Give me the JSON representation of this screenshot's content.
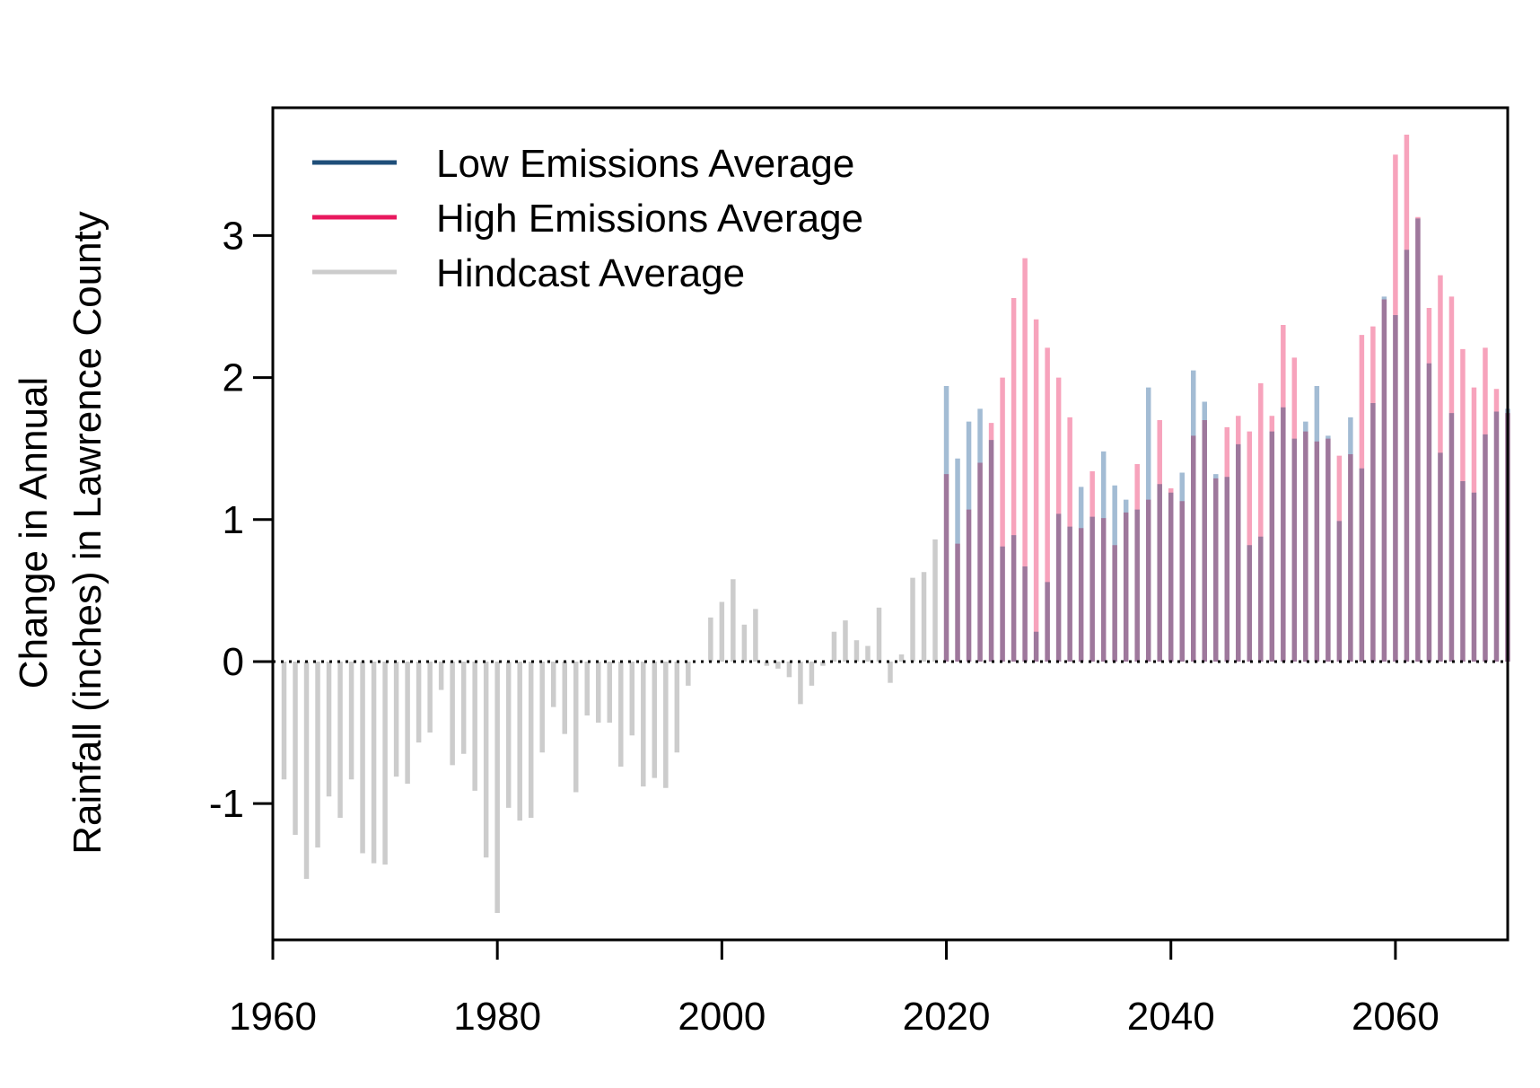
{
  "chart_data": {
    "type": "bar",
    "title": "",
    "xlabel": "",
    "ylabel": [
      "Change in Annual",
      "Rainfall (inches) in Lawrence County"
    ],
    "xlim": [
      1960,
      2070
    ],
    "ylim": [
      -1.96,
      3.9
    ],
    "xticks": [
      1960,
      1980,
      2000,
      2020,
      2040,
      2060
    ],
    "yticks": [
      -1,
      0,
      1,
      2,
      3
    ],
    "grid": false,
    "legend_position": "top-left",
    "reference_line": 0,
    "series": [
      {
        "name": "Low Emissions Average",
        "color": "#a3bcd4",
        "legend_color": "#1f4e79",
        "x_start": 2020,
        "values": [
          1.94,
          1.43,
          1.69,
          1.78,
          1.56,
          0.81,
          0.89,
          0.67,
          0.21,
          0.56,
          1.04,
          0.95,
          1.23,
          1.02,
          1.48,
          1.24,
          1.14,
          1.07,
          1.93,
          1.25,
          1.19,
          1.33,
          2.05,
          1.83,
          1.32,
          1.3,
          1.53,
          0.82,
          0.88,
          1.62,
          1.79,
          1.57,
          1.69,
          1.94,
          1.59,
          0.99,
          1.72,
          1.36,
          1.82,
          2.57,
          2.44,
          2.9,
          3.12,
          2.1,
          1.47,
          1.75,
          1.27,
          1.19,
          1.6,
          1.76,
          1.78
        ]
      },
      {
        "name": "High Emissions Average",
        "color": "#f7a3bc",
        "legend_color": "#e8185e",
        "x_start": 2020,
        "values": [
          1.32,
          0.83,
          1.07,
          1.4,
          1.68,
          2.0,
          2.56,
          2.84,
          2.41,
          2.21,
          2.0,
          1.72,
          0.94,
          1.34,
          1.01,
          0.82,
          1.05,
          1.39,
          1.14,
          1.7,
          1.22,
          1.13,
          1.59,
          1.7,
          1.29,
          1.65,
          1.73,
          1.62,
          1.96,
          1.73,
          2.37,
          2.14,
          1.62,
          1.55,
          1.57,
          1.45,
          1.46,
          2.3,
          2.36,
          2.55,
          3.57,
          3.71,
          3.13,
          2.49,
          2.72,
          2.57,
          2.2,
          1.93,
          2.21,
          1.92,
          1.75
        ]
      },
      {
        "name": "Hindcast Average",
        "color": "#cccccc",
        "legend_color": "#cccccc",
        "x_start": 1961,
        "values": [
          -0.83,
          -1.22,
          -1.53,
          -1.31,
          -0.95,
          -1.1,
          -0.83,
          -1.35,
          -1.42,
          -1.43,
          -0.81,
          -0.86,
          -0.57,
          -0.5,
          -0.2,
          -0.73,
          -0.65,
          -0.91,
          -1.38,
          -1.77,
          -1.03,
          -1.12,
          -1.1,
          -0.64,
          -0.32,
          -0.51,
          -0.92,
          -0.38,
          -0.43,
          -0.43,
          -0.74,
          -0.52,
          -0.88,
          -0.82,
          -0.89,
          -0.64,
          -0.17,
          0.0,
          0.31,
          0.42,
          0.58,
          0.26,
          0.37,
          -0.03,
          -0.05,
          -0.11,
          -0.3,
          -0.17,
          -0.03,
          0.21,
          0.29,
          0.15,
          0.11,
          0.38,
          -0.15,
          0.05,
          0.59,
          0.63,
          0.86
        ]
      }
    ]
  }
}
